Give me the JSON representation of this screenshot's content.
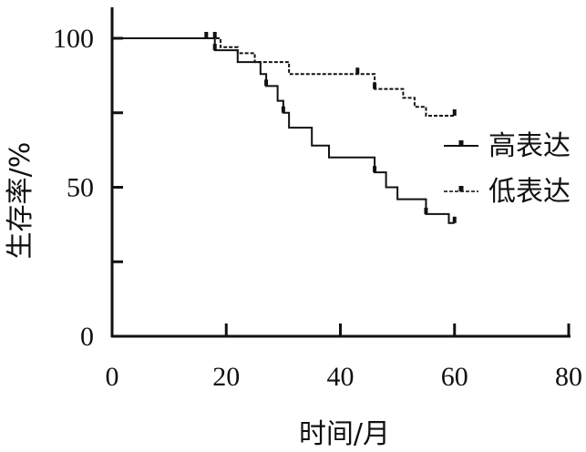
{
  "chart_data": {
    "type": "line",
    "subtype": "kaplan-meier step",
    "xlabel": "时间/月",
    "ylabel": "生存率/%",
    "xlim": [
      0,
      80
    ],
    "ylim": [
      0,
      100
    ],
    "x_ticks": [
      0,
      20,
      40,
      60,
      80
    ],
    "y_ticks": [
      0,
      50,
      100
    ],
    "y_minor_ticks": [
      25,
      75
    ],
    "grid": false,
    "legend_position": "right",
    "series": [
      {
        "name": "高表达",
        "style": "solid",
        "color": "#111111",
        "points": [
          [
            0,
            100
          ],
          [
            16.5,
            100
          ],
          [
            18,
            96
          ],
          [
            22,
            92
          ],
          [
            26,
            88
          ],
          [
            27,
            84
          ],
          [
            29,
            79
          ],
          [
            30,
            75
          ],
          [
            31,
            70
          ],
          [
            35,
            64
          ],
          [
            38,
            60
          ],
          [
            46,
            60
          ],
          [
            46,
            55
          ],
          [
            48,
            50
          ],
          [
            50,
            46
          ],
          [
            55,
            41
          ],
          [
            59,
            38
          ],
          [
            60,
            38
          ]
        ],
        "censor_x": [
          16.5,
          18,
          27,
          30,
          46,
          55,
          60
        ]
      },
      {
        "name": "低表达",
        "style": "dashed",
        "color": "#111111",
        "points": [
          [
            0,
            100
          ],
          [
            18,
            100
          ],
          [
            19,
            97
          ],
          [
            22,
            95
          ],
          [
            25,
            92
          ],
          [
            31,
            88
          ],
          [
            43,
            88
          ],
          [
            46,
            83
          ],
          [
            51,
            80
          ],
          [
            53,
            77
          ],
          [
            55,
            74
          ],
          [
            60,
            74
          ]
        ],
        "censor_x": [
          18,
          43,
          46,
          60
        ]
      }
    ]
  }
}
